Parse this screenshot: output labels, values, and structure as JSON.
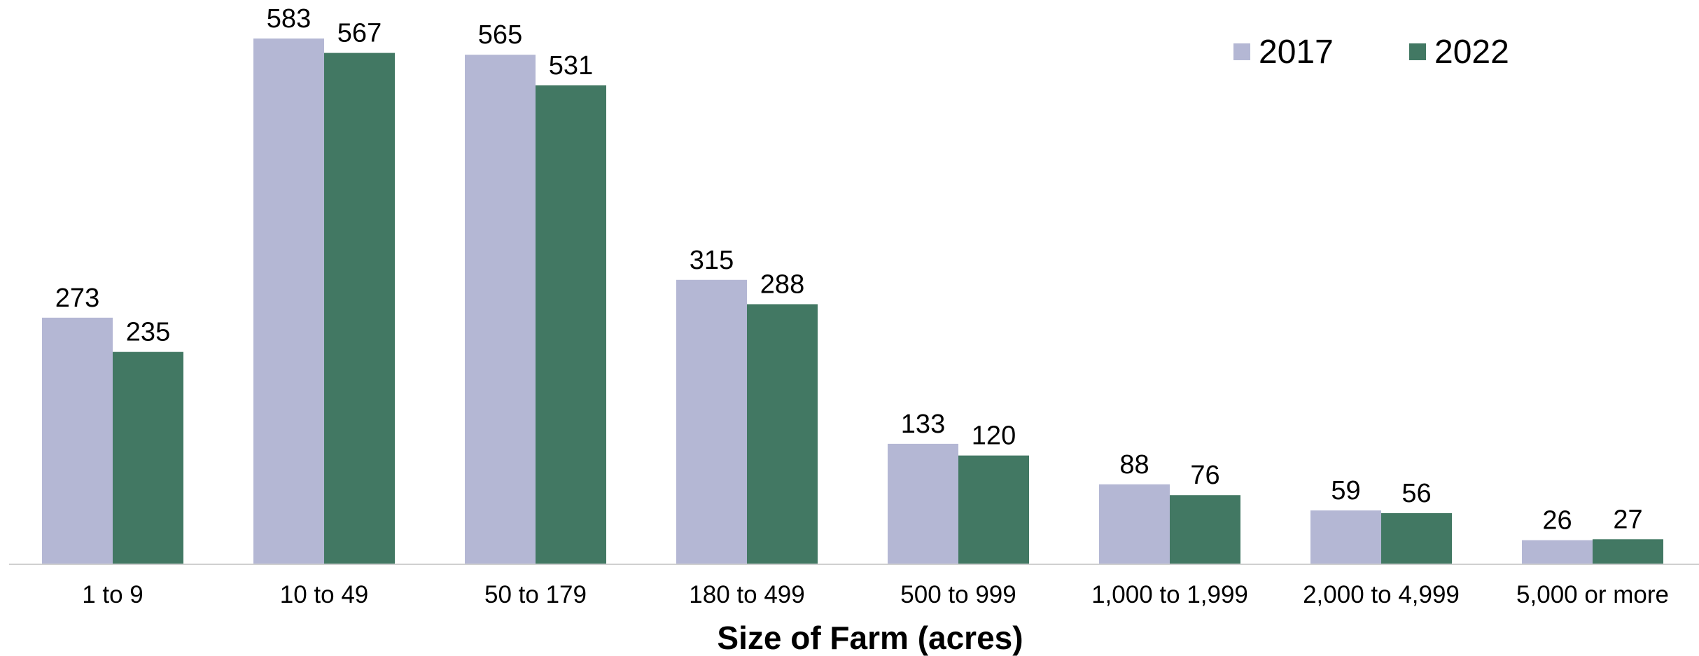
{
  "chart_data": {
    "type": "bar",
    "title": "",
    "xlabel": "Size of Farm (acres)",
    "ylabel": "",
    "categories": [
      "1 to 9",
      "10 to 49",
      "50 to 179",
      "180 to 499",
      "500 to 999",
      "1,000 to 1,999",
      "2,000 to 4,999",
      "5,000 or more"
    ],
    "series": [
      {
        "name": "2017",
        "values": [
          273,
          583,
          565,
          315,
          133,
          88,
          59,
          26
        ],
        "color": "#b4b7d4"
      },
      {
        "name": "2022",
        "values": [
          235,
          567,
          531,
          288,
          120,
          76,
          56,
          27
        ],
        "color": "#427863"
      }
    ],
    "ylim": [
      0,
      600
    ],
    "grid": false,
    "legend": "top-right",
    "data_labels": true
  }
}
